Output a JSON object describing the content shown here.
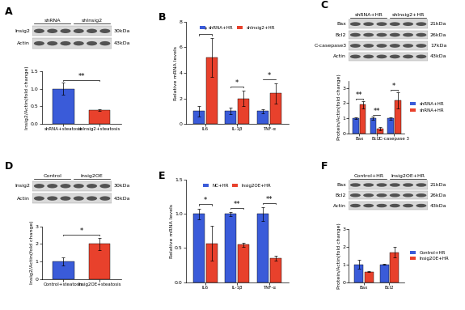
{
  "chart_data": [
    {
      "type": "bar",
      "ylabel": "Insig2/Actin(fold change)",
      "categories": [
        "shRNA+steatosis",
        "shInsig2+steatosis"
      ],
      "values": [
        1.0,
        0.4
      ],
      "errors": [
        0.17,
        0.03
      ],
      "colors": [
        "#3a5bd9",
        "#e8412c"
      ],
      "significance": "**",
      "ylim": [
        0,
        1.5
      ],
      "yticks": [
        {
          "value": 0,
          "label": "0.0"
        },
        {
          "value": 0.5,
          "label": "0.5"
        },
        {
          "value": 1,
          "label": "1.0"
        },
        {
          "value": 1.5,
          "label": "1.5"
        }
      ]
    },
    {
      "type": "bar",
      "panel": "B",
      "ylabel": "Relative mRNA levels",
      "categories": [
        "IL6",
        "IL-1β",
        "TNF-α"
      ],
      "series": [
        {
          "name": "shRNA+HR",
          "color": "#3a5bd9",
          "values": [
            1.0,
            1.0,
            1.0
          ],
          "errors": [
            0.4,
            0.25,
            0.15
          ]
        },
        {
          "name": "shInsig2+HR",
          "color": "#e8412c",
          "values": [
            5.2,
            2.0,
            2.4
          ],
          "errors": [
            1.5,
            0.6,
            0.8
          ]
        }
      ],
      "significance": [
        "*",
        "*",
        "*"
      ],
      "ylim": [
        0,
        8
      ],
      "yticks": [
        0,
        2,
        4,
        6,
        8
      ],
      "legend": "upper center"
    },
    {
      "type": "bar",
      "ylabel": "Protein/Actin(fold change)",
      "categories": [
        "Bax",
        "Bcl2",
        "C-casepase 3"
      ],
      "series": [
        {
          "name": "shRNA+HR",
          "color": "#3a5bd9",
          "values": [
            1.0,
            1.0,
            1.0
          ],
          "errors": [
            0.05,
            0.1,
            0.08
          ]
        },
        {
          "name": "shRNA+HR",
          "color": "#e8412c",
          "values": [
            1.9,
            0.3,
            2.2
          ],
          "errors": [
            0.25,
            0.1,
            0.55
          ]
        }
      ],
      "significance": [
        "**",
        "**",
        "*"
      ],
      "ylim": [
        0,
        3.5
      ],
      "yticks": [
        0,
        1,
        2,
        3
      ],
      "legend": "right"
    },
    {
      "type": "bar",
      "ylabel": "Insig2/Actin(fold change)",
      "categories": [
        "Control+steatosis",
        "Insig2OE+steatosis"
      ],
      "values": [
        1.0,
        2.0
      ],
      "errors": [
        0.25,
        0.35
      ],
      "colors": [
        "#3a5bd9",
        "#e8412c"
      ],
      "significance": "*",
      "ylim": [
        0,
        3
      ],
      "yticks": [
        0,
        1,
        2,
        3
      ]
    },
    {
      "type": "bar",
      "panel": "E",
      "ylabel": "Relative mRNA levels",
      "categories": [
        "IL6",
        "IL-1β",
        "TNF-α"
      ],
      "series": [
        {
          "name": "NC+HR",
          "color": "#3a5bd9",
          "values": [
            1.0,
            1.0,
            1.0
          ],
          "errors": [
            0.08,
            0.03,
            0.1
          ]
        },
        {
          "name": "Insig2OE+HR",
          "color": "#e8412c",
          "values": [
            0.57,
            0.55,
            0.35
          ],
          "errors": [
            0.25,
            0.03,
            0.04
          ]
        }
      ],
      "significance": [
        "*",
        "**",
        "**"
      ],
      "ylim": [
        0,
        1.5
      ],
      "yticks": [
        {
          "value": 0,
          "label": "0.0"
        },
        {
          "value": 0.5,
          "label": "0.5"
        },
        {
          "value": 1,
          "label": "1.0"
        },
        {
          "value": 1.5,
          "label": "1.5"
        }
      ],
      "legend": "upper center"
    },
    {
      "type": "bar",
      "ylabel": "Protein/Actin(fold change)",
      "categories": [
        "Bax",
        "Bcl2"
      ],
      "series": [
        {
          "name": "Control+HR",
          "color": "#3a5bd9",
          "values": [
            1.0,
            1.0
          ],
          "errors": [
            0.25,
            0.02
          ]
        },
        {
          "name": "Insig2OE+HR",
          "color": "#e8412c",
          "values": [
            0.6,
            1.7
          ],
          "errors": [
            0.03,
            0.3
          ]
        }
      ],
      "ylim": [
        0,
        3
      ],
      "yticks": [
        0,
        1,
        2,
        3
      ],
      "legend": "right"
    }
  ],
  "blots": [
    {
      "panel": "A",
      "groups": [
        "shRNA",
        "shInsig2"
      ],
      "rows": [
        {
          "name": "Insig2",
          "size": "30kDa"
        },
        {
          "name": "Actin",
          "size": "43kDa"
        }
      ]
    },
    {
      "panel": "C",
      "groups": [
        "shRNA+HR",
        "shInsig2+HR"
      ],
      "rows": [
        {
          "name": "Bax",
          "size": "21kDa"
        },
        {
          "name": "Bcl2",
          "size": "26kDa"
        },
        {
          "name": "C-casepase3",
          "size": "17kDa"
        },
        {
          "name": "Actin",
          "size": "43kDa"
        }
      ]
    },
    {
      "panel": "D",
      "groups": [
        "Control",
        "Insig2OE"
      ],
      "rows": [
        {
          "name": "Insig2",
          "size": "30kDa"
        },
        {
          "name": "Actin",
          "size": "43kDa"
        }
      ]
    },
    {
      "panel": "F",
      "groups": [
        "Control+HR",
        "Insig2OE+HR"
      ],
      "rows": [
        {
          "name": "Bax",
          "size": "21kDa"
        },
        {
          "name": "Bcl2",
          "size": "26kDa"
        },
        {
          "name": "Actin",
          "size": "43kDa"
        }
      ]
    }
  ]
}
